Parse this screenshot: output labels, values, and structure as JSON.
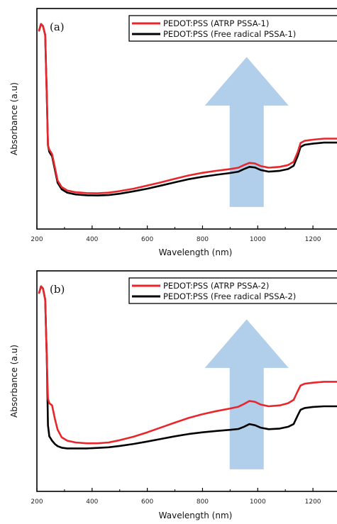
{
  "chart_data": [
    {
      "type": "line",
      "panel_label": "(a)",
      "xlabel": "Wavelength (nm)",
      "ylabel": "Absorbance (a.u)",
      "xlim": [
        200,
        1300
      ],
      "ylim": [
        0,
        1
      ],
      "xticks": [
        200,
        400,
        600,
        800,
        1000,
        1200
      ],
      "grid": false,
      "legend_position": "top-right",
      "annotation": "upward arrow (light blue) indicating increase",
      "series": [
        {
          "name": "PEDOT:PSS (ATRP PSSA-1)",
          "color": "#e8262b",
          "x": [
            208,
            215,
            222,
            230,
            236,
            240,
            245,
            255,
            265,
            275,
            290,
            310,
            340,
            380,
            420,
            460,
            500,
            550,
            600,
            650,
            700,
            750,
            800,
            850,
            900,
            930,
            950,
            970,
            990,
            1010,
            1040,
            1080,
            1110,
            1130,
            1145,
            1155,
            1170,
            1200,
            1240,
            1270,
            1300
          ],
          "values": [
            0.9,
            0.93,
            0.92,
            0.88,
            0.6,
            0.38,
            0.36,
            0.34,
            0.28,
            0.22,
            0.19,
            0.175,
            0.167,
            0.163,
            0.162,
            0.165,
            0.172,
            0.183,
            0.197,
            0.212,
            0.228,
            0.243,
            0.255,
            0.264,
            0.272,
            0.278,
            0.29,
            0.3,
            0.297,
            0.286,
            0.278,
            0.282,
            0.29,
            0.305,
            0.35,
            0.39,
            0.4,
            0.405,
            0.41,
            0.41,
            0.41
          ]
        },
        {
          "name": "PEDOT:PSS (Free radical PSSA-1)",
          "color": "#000000",
          "x": [
            208,
            215,
            222,
            230,
            236,
            240,
            245,
            255,
            265,
            275,
            290,
            310,
            340,
            380,
            420,
            460,
            500,
            550,
            600,
            650,
            700,
            750,
            800,
            850,
            900,
            930,
            950,
            970,
            990,
            1010,
            1040,
            1080,
            1110,
            1130,
            1145,
            1155,
            1170,
            1200,
            1240,
            1270,
            1300
          ],
          "values": [
            0.9,
            0.93,
            0.92,
            0.88,
            0.6,
            0.38,
            0.35,
            0.33,
            0.27,
            0.21,
            0.18,
            0.165,
            0.157,
            0.153,
            0.152,
            0.154,
            0.16,
            0.171,
            0.183,
            0.197,
            0.212,
            0.226,
            0.237,
            0.246,
            0.254,
            0.26,
            0.272,
            0.282,
            0.279,
            0.268,
            0.26,
            0.264,
            0.272,
            0.287,
            0.332,
            0.372,
            0.382,
            0.387,
            0.392,
            0.392,
            0.392
          ]
        }
      ]
    },
    {
      "type": "line",
      "panel_label": "(b)",
      "xlabel": "Wavelength (nm)",
      "ylabel": "Absorbance (a.u)",
      "xlim": [
        200,
        1300
      ],
      "ylim": [
        0,
        1
      ],
      "xticks": [
        200,
        400,
        600,
        800,
        1000,
        1200
      ],
      "grid": false,
      "legend_position": "top-right",
      "annotation": "upward arrow (light blue) indicating increase",
      "series": [
        {
          "name": "PEDOT:PSS (ATRP PSSA-2)",
          "color": "#e8262b",
          "x": [
            208,
            215,
            222,
            230,
            236,
            240,
            245,
            255,
            265,
            275,
            290,
            310,
            340,
            380,
            420,
            460,
            500,
            550,
            600,
            650,
            700,
            750,
            800,
            850,
            900,
            930,
            950,
            970,
            990,
            1010,
            1040,
            1080,
            1110,
            1130,
            1145,
            1155,
            1170,
            1200,
            1240,
            1270,
            1300
          ],
          "values": [
            0.9,
            0.93,
            0.92,
            0.87,
            0.6,
            0.42,
            0.4,
            0.39,
            0.33,
            0.28,
            0.245,
            0.23,
            0.222,
            0.218,
            0.218,
            0.222,
            0.232,
            0.248,
            0.268,
            0.29,
            0.312,
            0.333,
            0.35,
            0.364,
            0.376,
            0.384,
            0.396,
            0.41,
            0.406,
            0.394,
            0.386,
            0.39,
            0.4,
            0.415,
            0.455,
            0.48,
            0.488,
            0.493,
            0.497,
            0.497,
            0.497
          ]
        },
        {
          "name": "PEDOT:PSS (Free radical PSSA-2)",
          "color": "#000000",
          "x": [
            208,
            215,
            222,
            230,
            236,
            240,
            245,
            255,
            265,
            275,
            290,
            310,
            340,
            380,
            420,
            460,
            500,
            550,
            600,
            650,
            700,
            750,
            800,
            850,
            900,
            930,
            950,
            970,
            990,
            1010,
            1040,
            1080,
            1110,
            1130,
            1145,
            1155,
            1170,
            1200,
            1240,
            1270,
            1300
          ],
          "values": [
            0.9,
            0.93,
            0.92,
            0.87,
            0.6,
            0.3,
            0.25,
            0.23,
            0.215,
            0.205,
            0.198,
            0.195,
            0.195,
            0.195,
            0.197,
            0.2,
            0.206,
            0.215,
            0.226,
            0.238,
            0.25,
            0.26,
            0.268,
            0.274,
            0.279,
            0.283,
            0.293,
            0.305,
            0.3,
            0.289,
            0.282,
            0.285,
            0.293,
            0.305,
            0.345,
            0.37,
            0.378,
            0.383,
            0.386,
            0.386,
            0.386
          ]
        }
      ]
    }
  ]
}
